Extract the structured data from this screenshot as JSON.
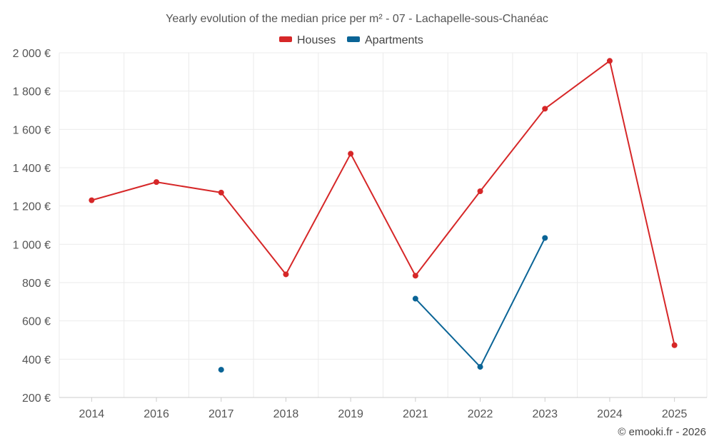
{
  "chart_data": {
    "type": "line",
    "title": "Yearly evolution of the median price per m² - 07 - Lachapelle-sous-Chanéac",
    "categories": [
      "2014",
      "2016",
      "2017",
      "2018",
      "2019",
      "2021",
      "2022",
      "2023",
      "2024",
      "2025"
    ],
    "ylim": [
      200,
      2000
    ],
    "yticks": [
      200,
      400,
      600,
      800,
      1000,
      1200,
      1400,
      1600,
      1800,
      2000
    ],
    "ytick_labels": [
      "200 €",
      "400 €",
      "600 €",
      "800 €",
      "1 000 €",
      "1 200 €",
      "1 400 €",
      "1 600 €",
      "1 800 €",
      "2 000 €"
    ],
    "grid": true,
    "legend_position": "top-center",
    "series": [
      {
        "name": "Houses",
        "color": "#d62728",
        "values": [
          1230,
          1325,
          1270,
          843,
          1473,
          836,
          1277,
          1708,
          1958,
          473
        ]
      },
      {
        "name": "Apartments",
        "color": "#0a6496",
        "values": [
          null,
          null,
          345,
          null,
          null,
          716,
          360,
          1033,
          null,
          null
        ]
      }
    ],
    "credit": "© emooki.fr - 2026"
  }
}
